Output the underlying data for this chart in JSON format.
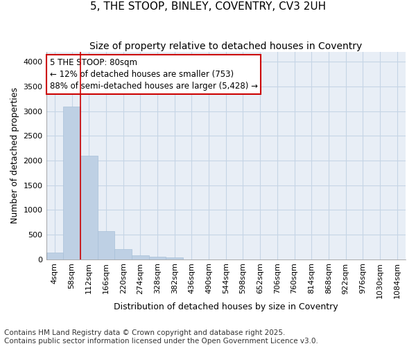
{
  "title": "5, THE STOOP, BINLEY, COVENTRY, CV3 2UH",
  "subtitle": "Size of property relative to detached houses in Coventry",
  "xlabel": "Distribution of detached houses by size in Coventry",
  "ylabel": "Number of detached properties",
  "footnote1": "Contains HM Land Registry data © Crown copyright and database right 2025.",
  "footnote2": "Contains public sector information licensed under the Open Government Licence v3.0.",
  "bar_labels": [
    "4sqm",
    "58sqm",
    "112sqm",
    "166sqm",
    "220sqm",
    "274sqm",
    "328sqm",
    "382sqm",
    "436sqm",
    "490sqm",
    "544sqm",
    "598sqm",
    "652sqm",
    "706sqm",
    "760sqm",
    "814sqm",
    "868sqm",
    "922sqm",
    "976sqm",
    "1030sqm",
    "1084sqm"
  ],
  "bar_values": [
    130,
    3100,
    2100,
    575,
    210,
    80,
    50,
    40,
    0,
    0,
    0,
    0,
    0,
    0,
    0,
    0,
    0,
    0,
    0,
    0,
    0
  ],
  "bar_color": "#bed0e4",
  "bar_edge_color": "#a8c0d8",
  "grid_color": "#c5d5e5",
  "bg_color": "#e8eef6",
  "vline_x": 1.5,
  "vline_color": "#cc0000",
  "annotation_text": "5 THE STOOP: 80sqm\n← 12% of detached houses are smaller (753)\n88% of semi-detached houses are larger (5,428) →",
  "annotation_box_color": "#cc0000",
  "ylim": [
    0,
    4200
  ],
  "yticks": [
    0,
    500,
    1000,
    1500,
    2000,
    2500,
    3000,
    3500,
    4000
  ],
  "title_fontsize": 11,
  "subtitle_fontsize": 10,
  "axis_label_fontsize": 9,
  "tick_fontsize": 8,
  "annotation_fontsize": 8.5,
  "footnote_fontsize": 7.5
}
